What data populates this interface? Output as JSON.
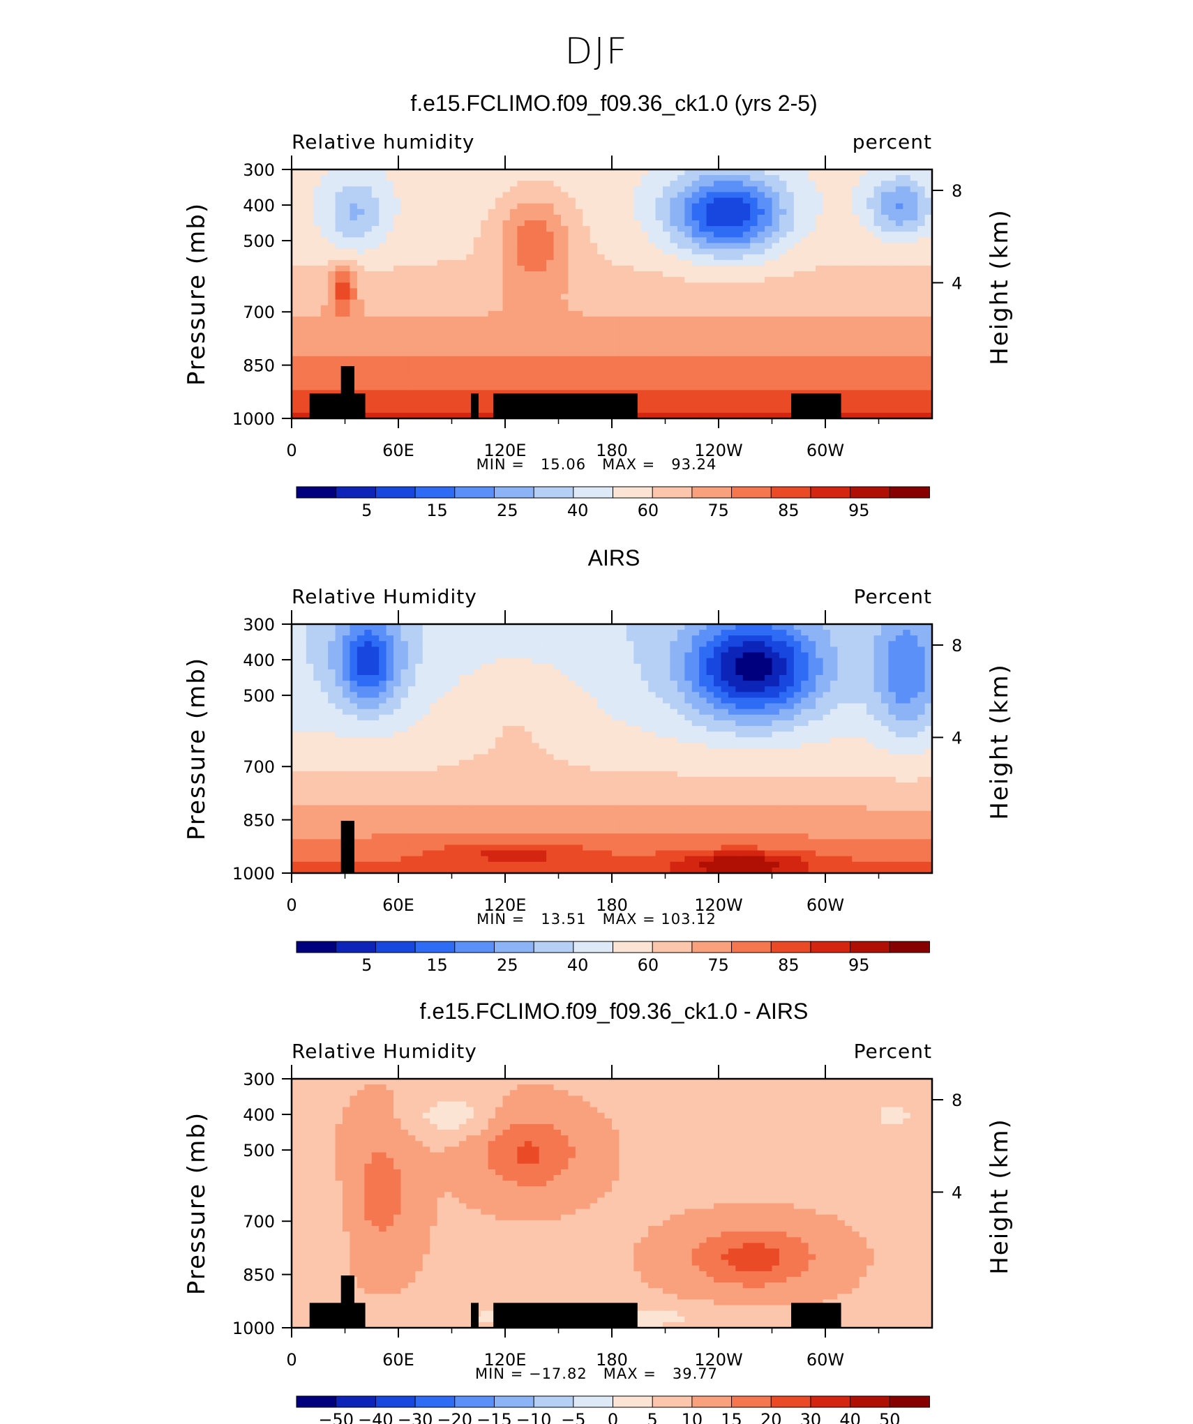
{
  "suptitle": "DJF",
  "chart_data": [
    {
      "type": "heatmap",
      "title": "f.e15.FCLIMO.f09_f09.36_ck1.0 (yrs 2-5)",
      "left_label": "Relative humidity",
      "right_label": "percent",
      "ylabel": "Pressure (mb)",
      "y2label": "Height (km)",
      "xticks": [
        "0",
        "60E",
        "120E",
        "180",
        "120W",
        "60W"
      ],
      "yticks": [
        "300",
        "400",
        "500",
        "700",
        "850",
        "1000"
      ],
      "y2ticks": [
        "8",
        "4"
      ],
      "stats": "MIN =   15.06   MAX =   93.24",
      "colorbar_labels": [
        "5",
        "15",
        "25",
        "40",
        "60",
        "75",
        "85",
        "95"
      ],
      "colorbar_colors": [
        "#00007f",
        "#0c24b8",
        "#1847e0",
        "#2f6cf5",
        "#5a90f7",
        "#8bb3f6",
        "#b6cff5",
        "#dde9f7",
        "#fbe4d3",
        "#fbc6ab",
        "#f9a07c",
        "#f57750",
        "#ea4a26",
        "#d32510",
        "#af1003",
        "#860000"
      ],
      "data_range": [
        15.06,
        93.24
      ]
    },
    {
      "type": "heatmap",
      "title": "AIRS",
      "left_label": "Relative Humidity",
      "right_label": "Percent",
      "ylabel": "Pressure (mb)",
      "y2label": "Height (km)",
      "xticks": [
        "0",
        "60E",
        "120E",
        "180",
        "120W",
        "60W"
      ],
      "yticks": [
        "300",
        "400",
        "500",
        "700",
        "850",
        "1000"
      ],
      "y2ticks": [
        "8",
        "4"
      ],
      "stats": "MIN =   13.51   MAX = 103.12",
      "colorbar_labels": [
        "5",
        "15",
        "25",
        "40",
        "60",
        "75",
        "85",
        "95"
      ],
      "colorbar_colors": [
        "#00007f",
        "#0c24b8",
        "#1847e0",
        "#2f6cf5",
        "#5a90f7",
        "#8bb3f6",
        "#b6cff5",
        "#dde9f7",
        "#fbe4d3",
        "#fbc6ab",
        "#f9a07c",
        "#f57750",
        "#ea4a26",
        "#d32510",
        "#af1003",
        "#860000"
      ],
      "data_range": [
        13.51,
        103.12
      ]
    },
    {
      "type": "heatmap",
      "title": "f.e15.FCLIMO.f09_f09.36_ck1.0 - AIRS",
      "left_label": "Relative Humidity",
      "right_label": "Percent",
      "ylabel": "Pressure (mb)",
      "y2label": "Height (km)",
      "xticks": [
        "0",
        "60E",
        "120E",
        "180",
        "120W",
        "60W"
      ],
      "yticks": [
        "300",
        "400",
        "500",
        "700",
        "850",
        "1000"
      ],
      "y2ticks": [
        "8",
        "4"
      ],
      "stats": "MIN = −17.82   MAX =   39.77",
      "colorbar_labels": [
        "−50",
        "−40",
        "−30",
        "−20",
        "−15",
        "−10",
        "−5",
        "0",
        "5",
        "10",
        "15",
        "20",
        "30",
        "40",
        "50"
      ],
      "colorbar_colors": [
        "#00007f",
        "#0c24b8",
        "#1847e0",
        "#2f6cf5",
        "#5a90f7",
        "#8bb3f6",
        "#b6cff5",
        "#dde9f7",
        "#fbe4d3",
        "#fbc6ab",
        "#f9a07c",
        "#f57750",
        "#ea4a26",
        "#d32510",
        "#af1003",
        "#860000"
      ],
      "data_range": [
        -17.82,
        39.77
      ]
    }
  ]
}
